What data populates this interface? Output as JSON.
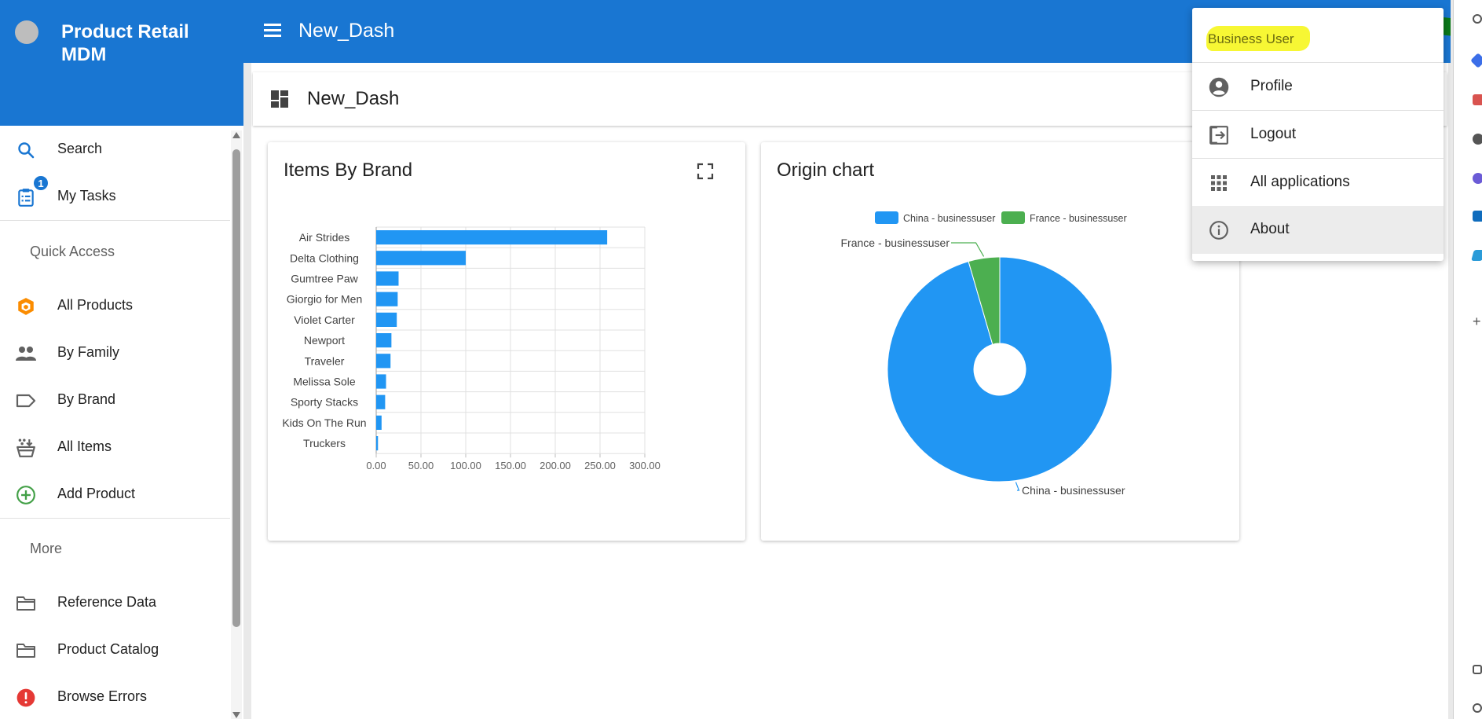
{
  "app": {
    "title": "Product Retail MDM"
  },
  "topbar": {
    "dashboard_name": "New_Dash"
  },
  "sidebar": {
    "items": [
      {
        "label": "Search",
        "icon": "search-icon"
      },
      {
        "label": "My Tasks",
        "icon": "tasks-icon",
        "badge": "1"
      }
    ],
    "quick_access_label": "Quick Access",
    "quick_items": [
      {
        "label": "All Products",
        "icon": "box-icon"
      },
      {
        "label": "By Family",
        "icon": "people-icon"
      },
      {
        "label": "By Brand",
        "icon": "tag-icon"
      },
      {
        "label": "All Items",
        "icon": "items-icon"
      },
      {
        "label": "Add Product",
        "icon": "add-circle-icon"
      }
    ],
    "more_label": "More",
    "more_items": [
      {
        "label": "Reference Data",
        "icon": "folder-icon"
      },
      {
        "label": "Product Catalog",
        "icon": "folder-icon"
      },
      {
        "label": "Browse Errors",
        "icon": "error-icon"
      }
    ]
  },
  "dashboard": {
    "title": "New_Dash"
  },
  "cards": {
    "items_by_brand_title": "Items By Brand",
    "origin_chart_title": "Origin chart"
  },
  "user_menu": {
    "user_name": "Business User",
    "items": [
      {
        "label": "Profile",
        "icon": "account-circle-icon"
      },
      {
        "label": "Logout",
        "icon": "logout-icon"
      },
      {
        "label": "All applications",
        "icon": "apps-grid-icon"
      },
      {
        "label": "About",
        "icon": "info-icon"
      }
    ]
  },
  "colors": {
    "primary": "#1976d2",
    "bar": "#2196f3",
    "pie_green": "#4caf50",
    "highlight": "#f7f734"
  },
  "chart_data": [
    {
      "type": "bar",
      "orientation": "horizontal",
      "categories": [
        "Air Strides",
        "Delta Clothing",
        "Gumtree Paw",
        "Giorgio for Men",
        "Violet Carter",
        "Newport",
        "Traveler",
        "Melissa Sole",
        "Sporty Stacks",
        "Kids On The Run",
        "Truckers"
      ],
      "values": [
        258,
        100,
        25,
        24,
        23,
        17,
        16,
        11,
        10,
        6,
        2
      ],
      "xlim": [
        0,
        300
      ],
      "xticks": [
        "0.00",
        "50.00",
        "100.00",
        "150.00",
        "200.00",
        "250.00",
        "300.00"
      ],
      "grid": true
    },
    {
      "type": "pie",
      "labels": [
        "China - businessuser",
        "France - businessuser"
      ],
      "values": [
        95.5,
        4.5
      ],
      "legend": "top"
    }
  ]
}
